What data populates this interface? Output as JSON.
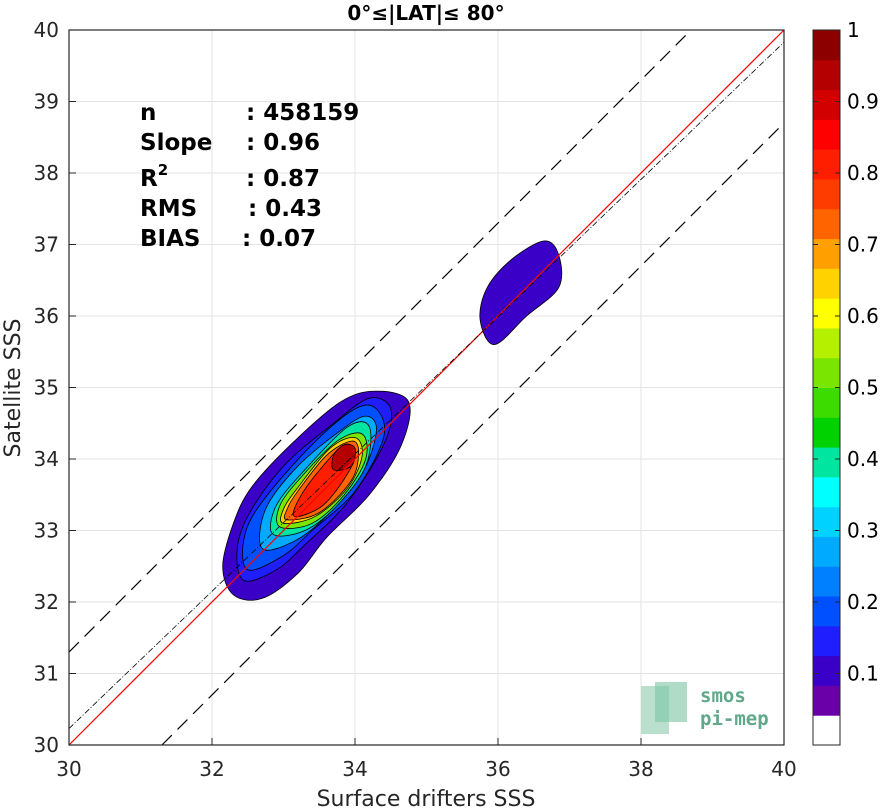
{
  "chart_data": {
    "type": "contour",
    "title": "0°≤|LAT|≤ 80°",
    "xlabel": "Surface drifters SSS",
    "ylabel": "Satellite SSS",
    "xlim": [
      30,
      40
    ],
    "ylim": [
      30,
      40
    ],
    "x_ticks": [
      "30",
      "32",
      "34",
      "36",
      "38",
      "40"
    ],
    "y_ticks": [
      "30",
      "31",
      "32",
      "33",
      "34",
      "35",
      "36",
      "37",
      "38",
      "39",
      "40"
    ],
    "grid": true,
    "stats": [
      {
        "label": "n",
        "value": ": 458159"
      },
      {
        "label": "Slope",
        "value": ": 0.96"
      },
      {
        "label": "R",
        "sup": "2",
        "value": ": 0.87"
      },
      {
        "label": "RMS",
        "value": ": 0.43"
      },
      {
        "label": "BIAS",
        "value": ": 0.07"
      }
    ],
    "lines": [
      {
        "kind": "one-to-one",
        "color": "#ff0000",
        "slope": 1.0,
        "intercept": 0.0
      },
      {
        "kind": "regression",
        "color": "#000000",
        "slope": 0.96,
        "intercept": 1.43
      },
      {
        "kind": "upper-bound",
        "color": "#000000",
        "dash": true,
        "slope": 1.0,
        "intercept": 1.3
      },
      {
        "kind": "lower-bound",
        "color": "#000000",
        "dash": true,
        "slope": 1.0,
        "intercept": -1.3
      }
    ],
    "contours": [
      {
        "level": 0.05,
        "color": "#3b00c8",
        "points": [
          [
            32.3,
            32.1
          ],
          [
            32.7,
            32.05
          ],
          [
            33.2,
            32.4
          ],
          [
            33.6,
            32.9
          ],
          [
            34.2,
            33.5
          ],
          [
            34.65,
            34.2
          ],
          [
            34.75,
            34.8
          ],
          [
            34.3,
            34.95
          ],
          [
            33.8,
            34.8
          ],
          [
            33.1,
            34.2
          ],
          [
            32.55,
            33.6
          ],
          [
            32.3,
            33.1
          ],
          [
            32.15,
            32.5
          ]
        ]
      },
      {
        "level": 0.05,
        "color": "#3b00c8",
        "points": [
          [
            35.95,
            35.6
          ],
          [
            36.4,
            36.0
          ],
          [
            36.85,
            36.4
          ],
          [
            36.85,
            36.85
          ],
          [
            36.65,
            37.05
          ],
          [
            36.2,
            36.8
          ],
          [
            35.85,
            36.4
          ],
          [
            35.75,
            35.95
          ]
        ]
      },
      {
        "level": 0.15,
        "color": "#1e1eff",
        "points": [
          [
            32.45,
            32.3
          ],
          [
            32.9,
            32.45
          ],
          [
            33.3,
            32.8
          ],
          [
            33.9,
            33.4
          ],
          [
            34.4,
            34.2
          ],
          [
            34.5,
            34.7
          ],
          [
            34.2,
            34.85
          ],
          [
            33.7,
            34.5
          ],
          [
            33.0,
            33.9
          ],
          [
            32.5,
            33.2
          ],
          [
            32.35,
            32.7
          ]
        ]
      },
      {
        "level": 0.25,
        "color": "#0050ff",
        "points": [
          [
            32.5,
            32.45
          ],
          [
            33.0,
            32.65
          ],
          [
            33.4,
            33.0
          ],
          [
            34.0,
            33.55
          ],
          [
            34.4,
            34.3
          ],
          [
            34.3,
            34.7
          ],
          [
            34.0,
            34.7
          ],
          [
            33.4,
            34.2
          ],
          [
            32.7,
            33.4
          ],
          [
            32.45,
            32.9
          ]
        ]
      },
      {
        "level": 0.35,
        "color": "#00aaff",
        "points": [
          [
            32.7,
            32.75
          ],
          [
            33.15,
            32.85
          ],
          [
            33.6,
            33.2
          ],
          [
            34.1,
            33.8
          ],
          [
            34.3,
            34.4
          ],
          [
            34.15,
            34.6
          ],
          [
            33.8,
            34.4
          ],
          [
            33.2,
            33.9
          ],
          [
            32.75,
            33.3
          ]
        ]
      },
      {
        "level": 0.45,
        "color": "#00e6a0",
        "points": [
          [
            32.85,
            32.95
          ],
          [
            33.3,
            33.0
          ],
          [
            33.75,
            33.35
          ],
          [
            34.15,
            33.9
          ],
          [
            34.2,
            34.45
          ],
          [
            33.9,
            34.45
          ],
          [
            33.3,
            33.85
          ],
          [
            32.9,
            33.35
          ]
        ]
      },
      {
        "level": 0.55,
        "color": "#7ae600",
        "points": [
          [
            32.95,
            33.05
          ],
          [
            33.4,
            33.1
          ],
          [
            33.85,
            33.5
          ],
          [
            34.15,
            34.0
          ],
          [
            34.1,
            34.35
          ],
          [
            33.75,
            34.25
          ],
          [
            33.25,
            33.75
          ],
          [
            32.95,
            33.35
          ]
        ]
      },
      {
        "level": 0.65,
        "color": "#ffd200",
        "points": [
          [
            33.0,
            33.1
          ],
          [
            33.45,
            33.2
          ],
          [
            33.9,
            33.6
          ],
          [
            34.1,
            34.05
          ],
          [
            34.0,
            34.3
          ],
          [
            33.65,
            34.15
          ],
          [
            33.2,
            33.6
          ],
          [
            33.0,
            33.3
          ]
        ]
      },
      {
        "level": 0.75,
        "color": "#ff6400",
        "points": [
          [
            33.05,
            33.15
          ],
          [
            33.5,
            33.25
          ],
          [
            33.95,
            33.7
          ],
          [
            34.05,
            34.1
          ],
          [
            33.95,
            34.25
          ],
          [
            33.6,
            34.05
          ],
          [
            33.2,
            33.55
          ],
          [
            33.05,
            33.3
          ]
        ]
      },
      {
        "level": 0.85,
        "color": "#ff1e00",
        "points": [
          [
            33.15,
            33.2
          ],
          [
            33.55,
            33.35
          ],
          [
            33.9,
            33.8
          ],
          [
            34.0,
            34.1
          ],
          [
            33.85,
            34.2
          ],
          [
            33.55,
            33.9
          ],
          [
            33.25,
            33.5
          ]
        ]
      },
      {
        "level": 0.95,
        "color": "#b40000",
        "points": [
          [
            33.7,
            33.85
          ],
          [
            33.95,
            33.9
          ],
          [
            34.0,
            34.15
          ],
          [
            33.85,
            34.2
          ],
          [
            33.7,
            34.05
          ]
        ]
      }
    ],
    "colorbar": {
      "min": 0,
      "max": 1,
      "ticks": [
        "0.1",
        "0.2",
        "0.3",
        "0.4",
        "0.5",
        "0.6",
        "0.7",
        "0.8",
        "0.9",
        "1"
      ],
      "colors": [
        "#ffffff",
        "#6a00a8",
        "#3b00c8",
        "#1e1eff",
        "#0050ff",
        "#0080ff",
        "#00aaff",
        "#00d2ff",
        "#00ffff",
        "#00e6a0",
        "#00d200",
        "#3cdc00",
        "#7ae600",
        "#b4f000",
        "#ffff00",
        "#ffd200",
        "#ffa000",
        "#ff6400",
        "#ff3c00",
        "#ff1e00",
        "#ff0000",
        "#d20000",
        "#b40000",
        "#8c0000"
      ]
    }
  },
  "logo": {
    "line1": "smos",
    "line2": "pi-mep"
  }
}
